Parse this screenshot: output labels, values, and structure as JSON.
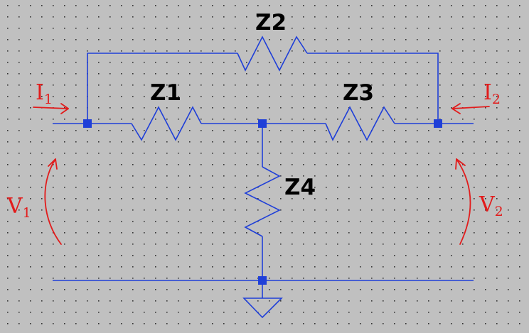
{
  "colors": {
    "background": "#c0c0c0",
    "grid_dot": "#333333",
    "wire": "#1f3fd8",
    "annotation": "#e21b1b",
    "label": "#000000"
  },
  "components": [
    {
      "id": "z1",
      "label": "Z1"
    },
    {
      "id": "z2",
      "label": "Z2"
    },
    {
      "id": "z3",
      "label": "Z3"
    },
    {
      "id": "z4",
      "label": "Z4"
    }
  ],
  "annotations": {
    "i1": {
      "symbol": "I",
      "subscript": "1"
    },
    "i2": {
      "symbol": "I",
      "subscript": "2"
    },
    "v1": {
      "symbol": "V",
      "subscript": "1"
    },
    "v2": {
      "symbol": "V",
      "subscript": "2"
    }
  }
}
